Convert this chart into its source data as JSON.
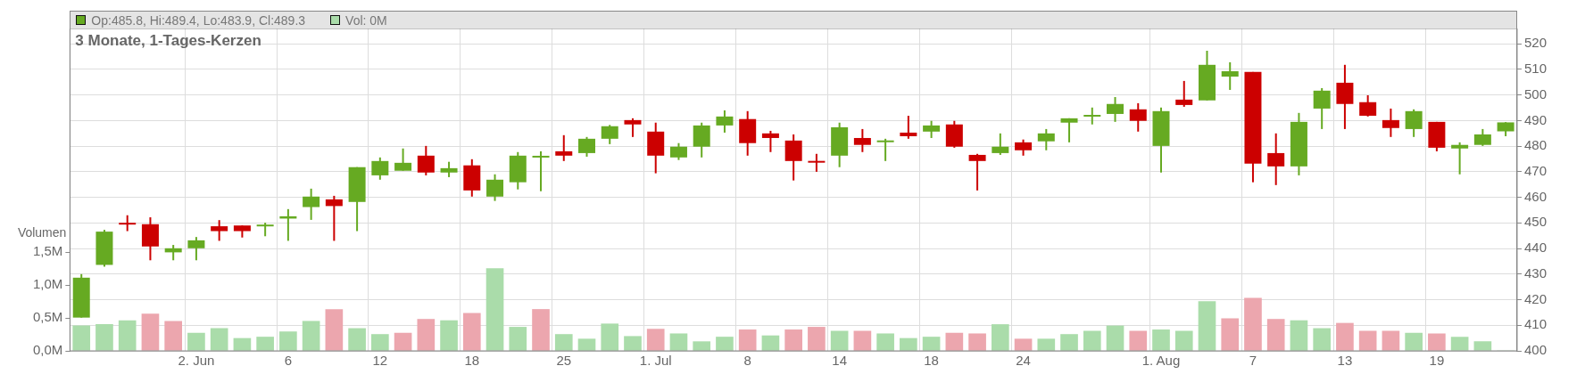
{
  "chart_data": {
    "type": "candlestick",
    "title": "3 Monate, 1-Tages-Kerzen",
    "y2label": "Volumen",
    "legend": "top left",
    "grid": true,
    "categories": [
      null,
      null,
      null,
      null,
      null,
      "2. Jun",
      null,
      null,
      null,
      "6",
      null,
      null,
      null,
      "12",
      null,
      null,
      null,
      "18",
      null,
      null,
      null,
      "25",
      null,
      null,
      null,
      "1. Jul",
      null,
      null,
      null,
      "8",
      null,
      null,
      null,
      "14",
      null,
      null,
      null,
      "18",
      null,
      null,
      null,
      "24",
      null,
      null,
      null,
      null,
      null,
      "1. Aug",
      null,
      null,
      null,
      "7",
      null,
      null,
      null,
      "13",
      null,
      null,
      null,
      "19",
      null,
      null,
      null
    ],
    "ylim": [
      400,
      526
    ],
    "yticks": [
      400,
      410,
      420,
      430,
      440,
      450,
      460,
      470,
      480,
      490,
      500,
      510,
      520
    ],
    "y2lim": [
      0,
      4.9
    ],
    "y2ticks": [
      {
        "value": 0,
        "label": "0,0M"
      },
      {
        "value": 0.5,
        "label": "0,5M"
      },
      {
        "value": 1,
        "label": "1,0M"
      },
      {
        "value": 1.5,
        "label": "1,5M"
      }
    ],
    "series": [
      {
        "name": "Op:485.8, Hi:489.4, Lo:483.9, Cl:489.3",
        "color": "#66aa22",
        "ohlc": [
          [
            413.0,
            430.0,
            413.0,
            428.6
          ],
          [
            433.6,
            447.3,
            432.9,
            446.6
          ],
          [
            449.8,
            453.0,
            446.8,
            449.6
          ],
          [
            449.5,
            452.2,
            435.4,
            440.8
          ],
          [
            438.5,
            441.4,
            435.4,
            440.1
          ],
          [
            440.1,
            444.5,
            435.4,
            443.2
          ],
          [
            448.7,
            451.1,
            443.0,
            446.8
          ],
          [
            449.0,
            449.0,
            444.3,
            446.8
          ],
          [
            448.9,
            450.1,
            444.8,
            449.1
          ],
          [
            451.7,
            455.4,
            443.0,
            452.6
          ],
          [
            456.2,
            463.4,
            451.2,
            460.3
          ],
          [
            459.2,
            460.6,
            443.0,
            456.6
          ],
          [
            458.2,
            471.8,
            446.8,
            471.8
          ],
          [
            468.6,
            475.6,
            466.9,
            474.2
          ],
          [
            470.4,
            479.1,
            470.4,
            473.5
          ],
          [
            476.3,
            480.1,
            468.6,
            469.7
          ],
          [
            469.7,
            473.9,
            467.9,
            471.4
          ],
          [
            472.5,
            474.9,
            460.3,
            462.7
          ],
          [
            460.3,
            469.0,
            458.6,
            466.9
          ],
          [
            465.9,
            477.7,
            463.1,
            476.3
          ],
          [
            475.8,
            478.0,
            462.4,
            476.0
          ],
          [
            478.0,
            484.3,
            474.2,
            476.3
          ],
          [
            477.3,
            483.6,
            475.9,
            482.9
          ],
          [
            482.9,
            488.3,
            480.8,
            487.8
          ],
          [
            490.2,
            490.9,
            483.6,
            488.5
          ],
          [
            485.7,
            489.2,
            469.4,
            476.3
          ],
          [
            475.6,
            481.2,
            474.6,
            479.8
          ],
          [
            479.8,
            489.2,
            475.6,
            488.1
          ],
          [
            488.1,
            494.0,
            485.3,
            491.6
          ],
          [
            490.6,
            493.7,
            476.3,
            481.2
          ],
          [
            485.0,
            486.0,
            477.7,
            483.2
          ],
          [
            482.2,
            484.6,
            466.6,
            474.2
          ],
          [
            474.0,
            477.0,
            470.0,
            473.8
          ],
          [
            476.3,
            489.2,
            471.8,
            487.4
          ],
          [
            483.2,
            486.7,
            477.7,
            480.5
          ],
          [
            481.8,
            482.9,
            474.2,
            482.0
          ],
          [
            485.3,
            491.9,
            482.9,
            483.9
          ],
          [
            485.7,
            489.9,
            483.2,
            488.1
          ],
          [
            488.5,
            489.9,
            479.4,
            479.8
          ],
          [
            476.6,
            477.0,
            462.7,
            474.2
          ],
          [
            477.3,
            485.0,
            476.6,
            479.8
          ],
          [
            481.5,
            482.6,
            476.3,
            478.4
          ],
          [
            481.9,
            486.7,
            478.4,
            485.0
          ],
          [
            489.2,
            490.9,
            481.5,
            490.9
          ],
          [
            491.8,
            495.1,
            488.5,
            492.0
          ],
          [
            492.6,
            499.2,
            489.5,
            496.5
          ],
          [
            494.4,
            496.8,
            485.7,
            489.9
          ],
          [
            480.1,
            495.1,
            469.7,
            493.7
          ],
          [
            498.2,
            505.5,
            495.4,
            496.1
          ],
          [
            497.9,
            517.3,
            497.9,
            511.8
          ],
          [
            507.2,
            512.8,
            502.0,
            509.3
          ],
          [
            509.0,
            509.0,
            465.9,
            473.2
          ],
          [
            477.3,
            485.0,
            464.8,
            472.1
          ],
          [
            472.1,
            493.0,
            468.6,
            489.5
          ],
          [
            494.7,
            502.7,
            486.7,
            501.7
          ],
          [
            504.8,
            511.8,
            486.7,
            496.5
          ],
          [
            497.2,
            499.9,
            491.6,
            491.9
          ],
          [
            490.2,
            494.7,
            483.6,
            487.1
          ],
          [
            486.7,
            494.4,
            483.6,
            493.7
          ],
          [
            489.5,
            489.5,
            478.0,
            479.4
          ],
          [
            479.1,
            481.5,
            469.0,
            480.5
          ],
          [
            480.5,
            486.7,
            480.1,
            484.6
          ],
          [
            485.8,
            489.4,
            483.9,
            489.3
          ]
        ],
        "colors": [
          "#66aa22",
          "#66aa22",
          "#cc0000",
          "#cc0000",
          "#66aa22",
          "#66aa22",
          "#cc0000",
          "#cc0000",
          "#66aa22",
          "#66aa22",
          "#66aa22",
          "#cc0000",
          "#66aa22",
          "#66aa22",
          "#66aa22",
          "#cc0000",
          "#66aa22",
          "#cc0000",
          "#66aa22",
          "#66aa22",
          "#66aa22",
          "#cc0000",
          "#66aa22",
          "#66aa22",
          "#cc0000",
          "#cc0000",
          "#66aa22",
          "#66aa22",
          "#66aa22",
          "#cc0000",
          "#cc0000",
          "#cc0000",
          "#cc0000",
          "#66aa22",
          "#cc0000",
          "#66aa22",
          "#cc0000",
          "#66aa22",
          "#cc0000",
          "#cc0000",
          "#66aa22",
          "#cc0000",
          "#66aa22",
          "#66aa22",
          "#66aa22",
          "#66aa22",
          "#cc0000",
          "#66aa22",
          "#cc0000",
          "#66aa22",
          "#66aa22",
          "#cc0000",
          "#cc0000",
          "#66aa22",
          "#66aa22",
          "#cc0000",
          "#cc0000",
          "#cc0000",
          "#66aa22",
          "#cc0000",
          "#66aa22",
          "#66aa22",
          "#66aa22"
        ]
      },
      {
        "type": "bar",
        "name": "Vol: 0M",
        "axis": "y2",
        "color": "#aadcaa",
        "values": [
          0.38,
          0.4,
          0.46,
          0.56,
          0.45,
          0.27,
          0.34,
          0.19,
          0.21,
          0.29,
          0.45,
          0.63,
          0.34,
          0.25,
          0.27,
          0.48,
          0.46,
          0.57,
          1.25,
          0.36,
          0.63,
          0.25,
          0.18,
          0.41,
          0.22,
          0.33,
          0.26,
          0.14,
          0.21,
          0.32,
          0.23,
          0.32,
          0.36,
          0.3,
          0.3,
          0.26,
          0.19,
          0.21,
          0.27,
          0.26,
          0.4,
          0.18,
          0.18,
          0.25,
          0.3,
          0.38,
          0.3,
          0.32,
          0.3,
          0.75,
          0.49,
          0.8,
          0.48,
          0.46,
          0.34,
          0.42,
          0.3,
          0.3,
          0.27,
          0.26,
          0.21,
          0.14,
          0
        ],
        "colors": [
          "#aadcaa",
          "#aadcaa",
          "#aadcaa",
          "#eca6ae",
          "#eca6ae",
          "#aadcaa",
          "#aadcaa",
          "#aadcaa",
          "#aadcaa",
          "#aadcaa",
          "#aadcaa",
          "#eca6ae",
          "#aadcaa",
          "#aadcaa",
          "#eca6ae",
          "#eca6ae",
          "#aadcaa",
          "#eca6ae",
          "#aadcaa",
          "#aadcaa",
          "#eca6ae",
          "#aadcaa",
          "#aadcaa",
          "#aadcaa",
          "#aadcaa",
          "#eca6ae",
          "#aadcaa",
          "#aadcaa",
          "#aadcaa",
          "#eca6ae",
          "#aadcaa",
          "#eca6ae",
          "#eca6ae",
          "#aadcaa",
          "#eca6ae",
          "#aadcaa",
          "#aadcaa",
          "#aadcaa",
          "#eca6ae",
          "#eca6ae",
          "#aadcaa",
          "#eca6ae",
          "#aadcaa",
          "#aadcaa",
          "#aadcaa",
          "#aadcaa",
          "#eca6ae",
          "#aadcaa",
          "#aadcaa",
          "#aadcaa",
          "#eca6ae",
          "#eca6ae",
          "#eca6ae",
          "#aadcaa",
          "#aadcaa",
          "#eca6ae",
          "#eca6ae",
          "#eca6ae",
          "#aadcaa",
          "#eca6ae",
          "#aadcaa",
          "#aadcaa",
          "#aadcaa"
        ]
      }
    ]
  }
}
